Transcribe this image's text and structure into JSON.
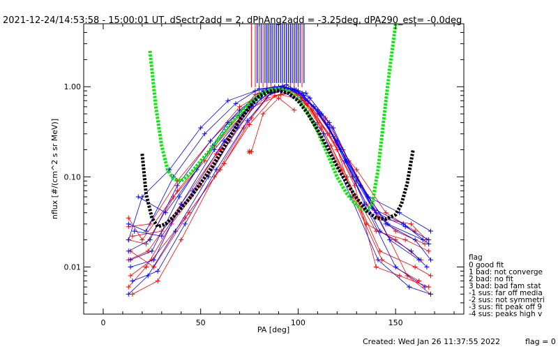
{
  "window": {
    "title": "2021-12-24/14:53:58 - 15:00:01 UT, dSectr2add = 2, dPhAng2add = -3.25deg, dPA290_est=  -0.0deg",
    "created": "Created: Wed Jan 26 11:37:55 2022",
    "flag_footer": "flag = 0"
  },
  "legend": {
    "header": "flag",
    "items": [
      " 0 good fit",
      " 1 bad: not converge",
      " 2 bad: no fit",
      " 3 bad: bad fam stat",
      "-1 sus: far off media",
      "-2 sus: not symmetri",
      "-3 sus: fit peak off 9",
      "-4 sus: peaks high v"
    ]
  },
  "chart_data": {
    "type": "line",
    "title": "2021-12-24/14:53:58 - 15:00:01 UT, dSectr2add = 2, dPhAng2add = -3.25deg, dPA290_est=  -0.0deg",
    "xlabel": "PA [deg]",
    "ylabel": "nflux [#/(cm^2 s sr MeV)]",
    "xlim": [
      -10,
      185
    ],
    "ylim": [
      0.003,
      5.0
    ],
    "yscale": "log",
    "x_ticks": [
      0,
      50,
      100,
      150
    ],
    "x_tick_labels": [
      "0",
      "50",
      "100",
      "150"
    ],
    "y_ticks": [
      0.01,
      0.1,
      1.0
    ],
    "y_tick_labels": [
      "0.01",
      "0.10",
      "1.00"
    ],
    "grid": false,
    "colors": {
      "red": "#ff0000",
      "blue": "#0000ff",
      "green": "#00ee00",
      "black": "#000000"
    },
    "fit_curves": [
      {
        "color": "green",
        "x": [
          24,
          27,
          30,
          33,
          36,
          40,
          45,
          50,
          55,
          60,
          65,
          70,
          75,
          80,
          85,
          90,
          95,
          100,
          105,
          110,
          115,
          120,
          125,
          130,
          135,
          138,
          141,
          144,
          147,
          150
        ],
        "y": [
          2.5,
          0.6,
          0.22,
          0.12,
          0.095,
          0.09,
          0.11,
          0.15,
          0.2,
          0.28,
          0.38,
          0.5,
          0.65,
          0.8,
          0.92,
          0.95,
          0.9,
          0.75,
          0.52,
          0.32,
          0.18,
          0.1,
          0.065,
          0.048,
          0.042,
          0.05,
          0.12,
          0.45,
          1.6,
          5.0
        ]
      },
      {
        "color": "black",
        "x": [
          20,
          22,
          25,
          28,
          32,
          36,
          40,
          45,
          50,
          55,
          60,
          65,
          70,
          75,
          80,
          85,
          90,
          95,
          100,
          105,
          110,
          115,
          120,
          125,
          130,
          135,
          140,
          145,
          150,
          153,
          156,
          159
        ],
        "y": [
          0.18,
          0.065,
          0.035,
          0.028,
          0.03,
          0.036,
          0.045,
          0.06,
          0.085,
          0.12,
          0.18,
          0.28,
          0.42,
          0.6,
          0.78,
          0.88,
          0.9,
          0.85,
          0.7,
          0.5,
          0.33,
          0.21,
          0.13,
          0.085,
          0.058,
          0.042,
          0.035,
          0.034,
          0.038,
          0.05,
          0.085,
          0.2
        ]
      }
    ],
    "red_series": [
      {
        "x": [
          13,
          22,
          38,
          57,
          70,
          80,
          90,
          100,
          110,
          122,
          140,
          155,
          167
        ],
        "y": [
          0.02,
          0.018,
          0.07,
          0.22,
          0.45,
          0.85,
          0.98,
          0.85,
          0.4,
          0.12,
          0.025,
          0.02,
          0.015
        ]
      },
      {
        "x": [
          13,
          23,
          40,
          58,
          72,
          82,
          92,
          102,
          112,
          125,
          142,
          160,
          168
        ],
        "y": [
          0.012,
          0.015,
          0.05,
          0.18,
          0.5,
          0.9,
          1.0,
          0.8,
          0.35,
          0.1,
          0.015,
          0.01,
          0.008
        ]
      },
      {
        "x": [
          14,
          25,
          42,
          60,
          75,
          88,
          98,
          108,
          118,
          128,
          143,
          162
        ],
        "y": [
          0.008,
          0.012,
          0.035,
          0.12,
          0.38,
          0.8,
          0.9,
          0.6,
          0.28,
          0.06,
          0.012,
          0.007
        ]
      },
      {
        "x": [
          13,
          24,
          38,
          55,
          70,
          85,
          95,
          105,
          115,
          130,
          145,
          160
        ],
        "y": [
          0.028,
          0.03,
          0.09,
          0.25,
          0.6,
          0.92,
          0.95,
          0.65,
          0.3,
          0.12,
          0.04,
          0.025
        ]
      },
      {
        "x": [
          15,
          28,
          40,
          57,
          72,
          84,
          96,
          110,
          123,
          138,
          156,
          168
        ],
        "y": [
          0.005,
          0.007,
          0.02,
          0.1,
          0.35,
          0.75,
          0.85,
          0.5,
          0.2,
          0.05,
          0.008,
          0.005
        ]
      },
      {
        "x": [
          13,
          20,
          36,
          52,
          66,
          78,
          90,
          100,
          114,
          126,
          141,
          158,
          166
        ],
        "y": [
          0.035,
          0.02,
          0.06,
          0.15,
          0.4,
          0.82,
          1.0,
          0.9,
          0.45,
          0.15,
          0.035,
          0.03,
          0.02
        ]
      },
      {
        "x": [
          14,
          26,
          44,
          62,
          76,
          86,
          97,
          107,
          117,
          135,
          150,
          163
        ],
        "y": [
          0.015,
          0.01,
          0.04,
          0.14,
          0.45,
          0.88,
          0.92,
          0.55,
          0.22,
          0.03,
          0.02,
          0.012
        ]
      },
      {
        "x": [
          13,
          22,
          35,
          50,
          65,
          77,
          91,
          103,
          116,
          129,
          140,
          152,
          167
        ],
        "y": [
          0.006,
          0.01,
          0.03,
          0.08,
          0.25,
          0.6,
          0.82,
          0.7,
          0.3,
          0.08,
          0.01,
          0.008,
          0.006
        ]
      },
      {
        "x": [
          76,
          82,
          90,
          98
        ],
        "y": [
          0.19,
          0.5,
          0.75,
          0.55
        ]
      },
      {
        "x": [
          15,
          30,
          45,
          60,
          75,
          90,
          105,
          120,
          135,
          150,
          165
        ],
        "y": [
          0.022,
          0.025,
          0.06,
          0.2,
          0.55,
          0.97,
          0.7,
          0.2,
          0.05,
          0.025,
          0.018
        ]
      }
    ],
    "blue_series": [
      {
        "x": [
          13,
          24,
          38,
          55,
          70,
          82,
          92,
          104,
          116,
          130,
          145,
          160,
          168
        ],
        "y": [
          0.015,
          0.02,
          0.08,
          0.25,
          0.55,
          0.9,
          1.02,
          0.85,
          0.4,
          0.1,
          0.03,
          0.02,
          0.012
        ]
      },
      {
        "x": [
          14,
          26,
          40,
          57,
          72,
          84,
          94,
          106,
          118,
          132,
          147,
          162
        ],
        "y": [
          0.01,
          0.012,
          0.05,
          0.2,
          0.5,
          0.95,
          1.05,
          0.75,
          0.35,
          0.08,
          0.02,
          0.012
        ]
      },
      {
        "x": [
          13,
          22,
          36,
          52,
          68,
          80,
          90,
          100,
          112,
          124,
          138,
          154,
          167
        ],
        "y": [
          0.03,
          0.025,
          0.1,
          0.3,
          0.65,
          0.95,
          1.0,
          0.9,
          0.5,
          0.15,
          0.045,
          0.03,
          0.018
        ]
      },
      {
        "x": [
          15,
          28,
          42,
          58,
          74,
          86,
          96,
          108,
          120,
          134,
          150,
          165
        ],
        "y": [
          0.007,
          0.009,
          0.03,
          0.12,
          0.42,
          0.85,
          0.95,
          0.6,
          0.25,
          0.05,
          0.01,
          0.006
        ]
      },
      {
        "x": [
          13,
          20,
          34,
          50,
          64,
          78,
          88,
          98,
          110,
          122,
          136,
          152,
          168
        ],
        "y": [
          0.02,
          0.06,
          0.12,
          0.35,
          0.7,
          0.9,
          1.0,
          0.95,
          0.55,
          0.2,
          0.06,
          0.04,
          0.025
        ]
      },
      {
        "x": [
          14,
          25,
          39,
          56,
          70,
          83,
          93,
          103,
          115,
          128,
          142,
          158,
          166
        ],
        "y": [
          0.012,
          0.015,
          0.06,
          0.22,
          0.48,
          0.88,
          0.98,
          0.8,
          0.38,
          0.1,
          0.025,
          0.015,
          0.01
        ]
      },
      {
        "x": [
          16,
          30,
          46,
          62,
          76,
          88,
          99,
          111,
          125,
          140,
          155,
          167
        ],
        "y": [
          0.025,
          0.022,
          0.07,
          0.25,
          0.6,
          0.96,
          0.92,
          0.5,
          0.15,
          0.04,
          0.028,
          0.02
        ]
      },
      {
        "x": [
          13,
          23,
          37,
          54,
          69,
          81,
          91,
          101,
          113,
          127,
          141,
          157,
          168
        ],
        "y": [
          0.005,
          0.008,
          0.025,
          0.1,
          0.35,
          0.75,
          0.9,
          0.7,
          0.3,
          0.06,
          0.012,
          0.006,
          0.005
        ]
      },
      {
        "x": [
          18,
          32,
          48,
          64,
          78,
          90,
          102,
          116,
          130,
          146,
          164
        ],
        "y": [
          0.06,
          0.04,
          0.12,
          0.4,
          0.75,
          1.0,
          0.85,
          0.35,
          0.09,
          0.03,
          0.02
        ]
      }
    ],
    "red_vlines_x": [
      76,
      78,
      80,
      82,
      84,
      86,
      96,
      98,
      100,
      102
    ],
    "blue_vlines_x": [
      79,
      81,
      83,
      84,
      85,
      86,
      87,
      88,
      89,
      90,
      91,
      92,
      93,
      94,
      95,
      96,
      97,
      98,
      99,
      100,
      101,
      103
    ],
    "red_star_points": [
      {
        "x": 75,
        "y": 0.19
      }
    ]
  }
}
